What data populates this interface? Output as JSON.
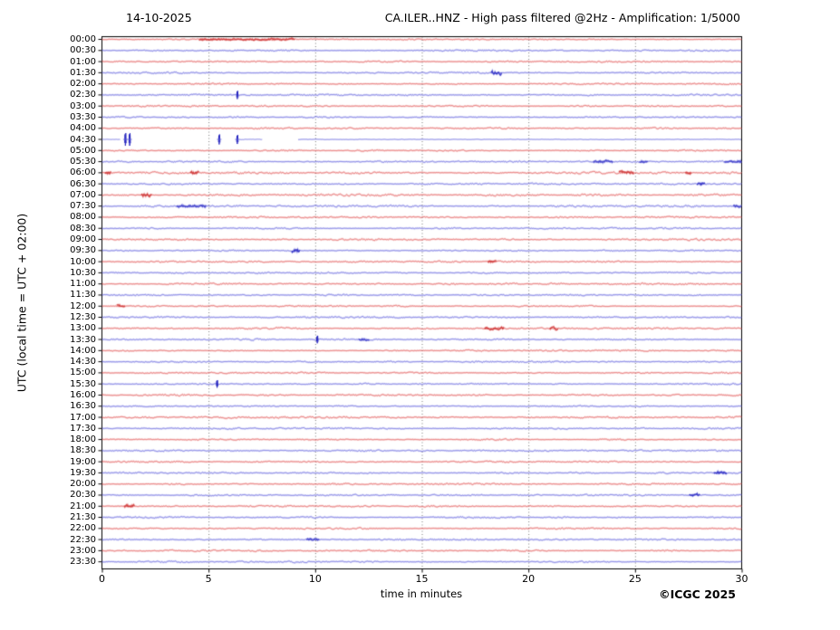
{
  "header": {
    "date": "14-10-2025",
    "title": "CA.ILER..HNZ - High pass filtered @2Hz - Amplification: 1/5000"
  },
  "axes": {
    "x_label": "time in minutes",
    "y_label": "UTC (local time = UTC + 02:00)",
    "x_ticks": [
      "0",
      "5",
      "10",
      "15",
      "20",
      "25",
      "30"
    ]
  },
  "footer": {
    "copyright": "©ICGC 2025"
  },
  "chart_data": {
    "type": "line",
    "subtype": "helicorder-seismogram",
    "title": "CA.ILER..HNZ - High pass filtered @2Hz - Amplification: 1/5000",
    "date": "14-10-2025",
    "xlabel": "time in minutes",
    "ylabel": "UTC (local time = UTC + 02:00)",
    "xlim": [
      0,
      30
    ],
    "minutes_per_line": 30,
    "x_ticks": [
      0,
      5,
      10,
      15,
      20,
      25,
      30
    ],
    "grid": {
      "vertical_dotted_at_minutes": [
        5,
        10,
        15,
        20,
        25
      ]
    },
    "colors": {
      "hour_row_trace": "#e05050",
      "hour_row_dark": "#c02020",
      "half_hour_row_trace": "#5f5fdc",
      "half_hour_row_dark": "#2323be",
      "grid": "#777777",
      "axis": "#000000",
      "background": "#ffffff"
    },
    "row_color_rule": "rows at XX:00 are red, rows at XX:30 are blue",
    "rows": [
      "00:00",
      "00:30",
      "01:00",
      "01:30",
      "02:00",
      "02:30",
      "03:00",
      "03:30",
      "04:00",
      "04:30",
      "05:00",
      "05:30",
      "06:00",
      "06:30",
      "07:00",
      "07:30",
      "08:00",
      "08:30",
      "09:00",
      "09:30",
      "10:00",
      "10:30",
      "11:00",
      "11:30",
      "12:00",
      "12:30",
      "13:00",
      "13:30",
      "14:00",
      "14:30",
      "15:00",
      "15:30",
      "16:00",
      "16:30",
      "17:00",
      "17:30",
      "18:00",
      "18:30",
      "19:00",
      "19:30",
      "20:00",
      "20:30",
      "21:00",
      "21:30",
      "22:00",
      "22:30",
      "23:00",
      "23:30"
    ],
    "noise_scale": {
      "0": 0.8,
      "12": 1.4,
      "14": 1.4,
      "15": 1.3,
      "18": 1.25,
      "22": 1.15,
      "26": 1.3,
      "34": 1.15
    },
    "events": [
      {
        "r": 0,
        "m": 6.8,
        "w": 4.5,
        "a": 1.1,
        "k": "dense"
      },
      {
        "r": 3,
        "m": 18.5,
        "w": 0.5,
        "a": 2.5,
        "k": "burst"
      },
      {
        "r": 5,
        "m": 6.35,
        "w": 0.2,
        "a": 2.8,
        "k": "spike"
      },
      {
        "r": 11,
        "m": 23.5,
        "w": 0.9,
        "a": 1.6,
        "k": "dense"
      },
      {
        "r": 11,
        "m": 25.4,
        "w": 0.4,
        "a": 1.5,
        "k": "dense"
      },
      {
        "r": 11,
        "m": 29.6,
        "w": 0.8,
        "a": 1.8,
        "k": "dense"
      },
      {
        "r": 12,
        "m": 0.3,
        "w": 0.3,
        "a": 1.8,
        "k": "dense"
      },
      {
        "r": 12,
        "m": 4.35,
        "w": 0.4,
        "a": 1.8,
        "k": "dense"
      },
      {
        "r": 12,
        "m": 24.6,
        "w": 0.7,
        "a": 2.0,
        "k": "dense"
      },
      {
        "r": 12,
        "m": 27.5,
        "w": 0.3,
        "a": 1.6,
        "k": "dense"
      },
      {
        "r": 13,
        "m": 28.1,
        "w": 0.4,
        "a": 2.2,
        "k": "burst"
      },
      {
        "r": 14,
        "m": 2.1,
        "w": 0.5,
        "a": 2.2,
        "k": "dense"
      },
      {
        "r": 15,
        "m": 4.2,
        "w": 1.4,
        "a": 1.6,
        "k": "dense"
      },
      {
        "r": 15,
        "m": 29.8,
        "w": 0.4,
        "a": 2.2,
        "k": "dense"
      },
      {
        "r": 19,
        "m": 9.1,
        "w": 0.4,
        "a": 2.4,
        "k": "burst"
      },
      {
        "r": 20,
        "m": 18.3,
        "w": 0.4,
        "a": 1.6,
        "k": "dense"
      },
      {
        "r": 24,
        "m": 0.9,
        "w": 0.4,
        "a": 1.8,
        "k": "dense"
      },
      {
        "r": 26,
        "m": 18.4,
        "w": 0.9,
        "a": 1.8,
        "k": "dense"
      },
      {
        "r": 26,
        "m": 21.2,
        "w": 0.4,
        "a": 1.8,
        "k": "dense"
      },
      {
        "r": 27,
        "m": 10.1,
        "w": 0.25,
        "a": 2.6,
        "k": "spike"
      },
      {
        "r": 27,
        "m": 12.3,
        "w": 0.5,
        "a": 1.5,
        "k": "dense"
      },
      {
        "r": 31,
        "m": 5.4,
        "w": 0.25,
        "a": 2.6,
        "k": "spike"
      },
      {
        "r": 39,
        "m": 29.0,
        "w": 0.6,
        "a": 2.2,
        "k": "burst"
      },
      {
        "r": 41,
        "m": 27.8,
        "w": 0.5,
        "a": 1.8,
        "k": "burst"
      },
      {
        "r": 42,
        "m": 1.3,
        "w": 0.5,
        "a": 2.0,
        "k": "dense"
      },
      {
        "r": 45,
        "m": 9.9,
        "w": 0.6,
        "a": 1.5,
        "k": "dense"
      }
    ],
    "special_row": {
      "index": 9,
      "label": "04:30",
      "note": "data gaps with calibration spikes, then flat quiet trace",
      "flat_segments_minutes": [
        [
          0,
          0.85
        ],
        [
          6.45,
          7.55
        ],
        [
          9.2,
          30
        ]
      ],
      "gaps_minutes": [
        [
          1.5,
          5.3
        ],
        [
          7.7,
          9.1
        ]
      ],
      "spikes": [
        {
          "m": 1.1,
          "a": 7
        },
        {
          "m": 1.3,
          "a": 7
        },
        {
          "m": 5.5,
          "a": 5.5
        },
        {
          "m": 6.35,
          "a": 5
        }
      ]
    }
  }
}
